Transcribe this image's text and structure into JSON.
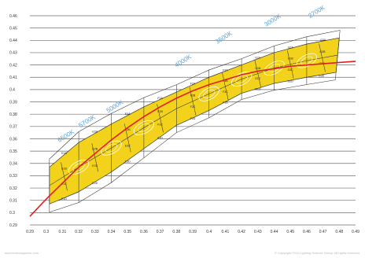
{
  "chart_data": {
    "type": "line",
    "title": "",
    "xlabel": "",
    "ylabel": "",
    "xlim": [
      0.29,
      0.49
    ],
    "ylim": [
      0.29,
      0.46
    ],
    "grid": "horizontal",
    "x_ticks": [
      "0.29",
      "0.3",
      "0.31",
      "0.32",
      "0.33",
      "0.34",
      "0.35",
      "0.36",
      "0.37",
      "0.38",
      "0.39",
      "0.4",
      "0.41",
      "0.42",
      "0.43",
      "0.44",
      "0.45",
      "0.46",
      "0.47",
      "0.48",
      "0.49"
    ],
    "y_ticks": [
      "0.29",
      "0.3",
      "0.31",
      "0.32",
      "0.33",
      "0.34",
      "0.35",
      "0.36",
      "0.37",
      "0.38",
      "0.39",
      "0.4",
      "0.41",
      "0.42",
      "0.43",
      "0.44",
      "0.45",
      "0.46"
    ],
    "cct_labels": [
      {
        "text": "6500K",
        "x": 0.308,
        "y": 0.357
      },
      {
        "text": "5700K",
        "x": 0.321,
        "y": 0.369
      },
      {
        "text": "5000K",
        "x": 0.338,
        "y": 0.381
      },
      {
        "text": "4000K",
        "x": 0.38,
        "y": 0.418
      },
      {
        "text": "3500K",
        "x": 0.405,
        "y": 0.437
      },
      {
        "text": "3000K",
        "x": 0.435,
        "y": 0.451
      },
      {
        "text": "2700K",
        "x": 0.462,
        "y": 0.458
      }
    ],
    "series": [
      {
        "role": "planckian-locus",
        "color": "#e02020",
        "x": [
          0.29,
          0.3,
          0.31,
          0.32,
          0.33,
          0.34,
          0.35,
          0.36,
          0.37,
          0.38,
          0.39,
          0.4,
          0.41,
          0.42,
          0.43,
          0.44,
          0.45,
          0.46,
          0.47,
          0.48,
          0.49
        ],
        "y": [
          0.297,
          0.311,
          0.324,
          0.337,
          0.348,
          0.359,
          0.369,
          0.378,
          0.386,
          0.393,
          0.399,
          0.404,
          0.408,
          0.412,
          0.415,
          0.417,
          0.419,
          0.42,
          0.421,
          0.422,
          0.423
        ]
      },
      {
        "role": "ansi-band-upper",
        "color": "#f2d21a",
        "x": [
          0.302,
          0.32,
          0.34,
          0.36,
          0.38,
          0.4,
          0.42,
          0.44,
          0.46,
          0.48
        ],
        "y": [
          0.337,
          0.357,
          0.372,
          0.386,
          0.398,
          0.41,
          0.42,
          0.43,
          0.437,
          0.442
        ]
      },
      {
        "role": "ansi-band-lower",
        "color": "#f2d21a",
        "x": [
          0.302,
          0.32,
          0.34,
          0.36,
          0.38,
          0.4,
          0.42,
          0.44,
          0.46,
          0.478
        ],
        "y": [
          0.307,
          0.317,
          0.333,
          0.352,
          0.371,
          0.383,
          0.397,
          0.405,
          0.41,
          0.414
        ]
      }
    ],
    "bin_labels": [
      "E1A",
      "E1B",
      "E1C",
      "E1D",
      "E2A",
      "E2B",
      "E2C",
      "E2D",
      "E3A",
      "E3B",
      "E3C",
      "E3D",
      "F1A",
      "F1B",
      "F1C",
      "F1D",
      "F2A",
      "F2B",
      "F2C",
      "F2D",
      "F3A",
      "F3B",
      "F3C",
      "F3D",
      "G1A",
      "G1B",
      "G1C",
      "G1D",
      "G2A",
      "G2B",
      "G2C",
      "G2D",
      "G3A",
      "G3B",
      "G3C",
      "G3D",
      "H1A",
      "H1B",
      "H1C",
      "H1D",
      "H2A",
      "H2B",
      "H2C",
      "H2D",
      "H3A",
      "H3B",
      "H3C",
      "H3D",
      "J1A",
      "J1B",
      "J1C",
      "J1D",
      "K1A",
      "K1B",
      "K1C",
      "K1D",
      "L1A",
      "L1B",
      "L1C",
      "L1D",
      "M1A",
      "M1B",
      "M1C",
      "M1D"
    ],
    "colors": {
      "grid": "#6e6e6e",
      "band": "#f2d21a",
      "bin_outline": "#333333",
      "locus": "#e02020",
      "cct_text": "#5aa0d8",
      "ellipse": "#ffffff"
    }
  },
  "footer": {
    "left": "www.ledsmagazine.com",
    "right": "© Copyright 2010 Lighting Science Group. All rights reserved."
  }
}
